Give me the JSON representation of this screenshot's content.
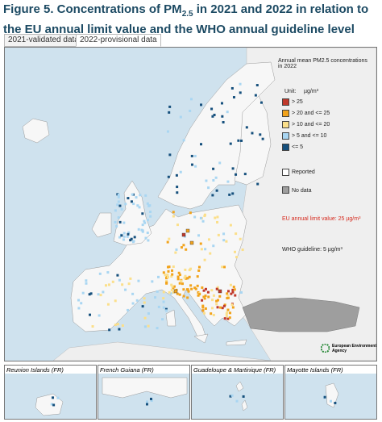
{
  "header": {
    "title_prefix": "Figure 5. Concentrations of PM",
    "title_sub": "2.5",
    "title_suffix": " in 2021 and 2022 in relation to the EU annual limit value and the WHO annual guideline level"
  },
  "tabs": [
    "2021-validated data",
    "2022-provisional data"
  ],
  "legend": {
    "title": "Annual mean PM2.5 concentrations in 2022",
    "unit_label": "Unit:",
    "unit": "µg/m³",
    "classes": [
      {
        "label": "> 25",
        "color": "#c0392b"
      },
      {
        "label": "> 20 and <= 25",
        "color": "#f2a31b"
      },
      {
        "label": "> 10 and <= 20",
        "color": "#fbdf8a"
      },
      {
        "label": "> 5 and <= 10",
        "color": "#a9d6f2"
      },
      {
        "label": "<= 5",
        "color": "#16507d"
      }
    ],
    "reported": "Reported",
    "no_data": "No data",
    "eu_limit": "EU annual limit value: 25 µg/m³",
    "who": "WHO guideline: 5 µg/m³"
  },
  "logo": "European Environment Agency",
  "insets": [
    "Reunion Islands (FR)",
    "French Guiana (FR)",
    "Guadeloupe & Martinique (FR)",
    "Mayotte Islands (FR)"
  ]
}
